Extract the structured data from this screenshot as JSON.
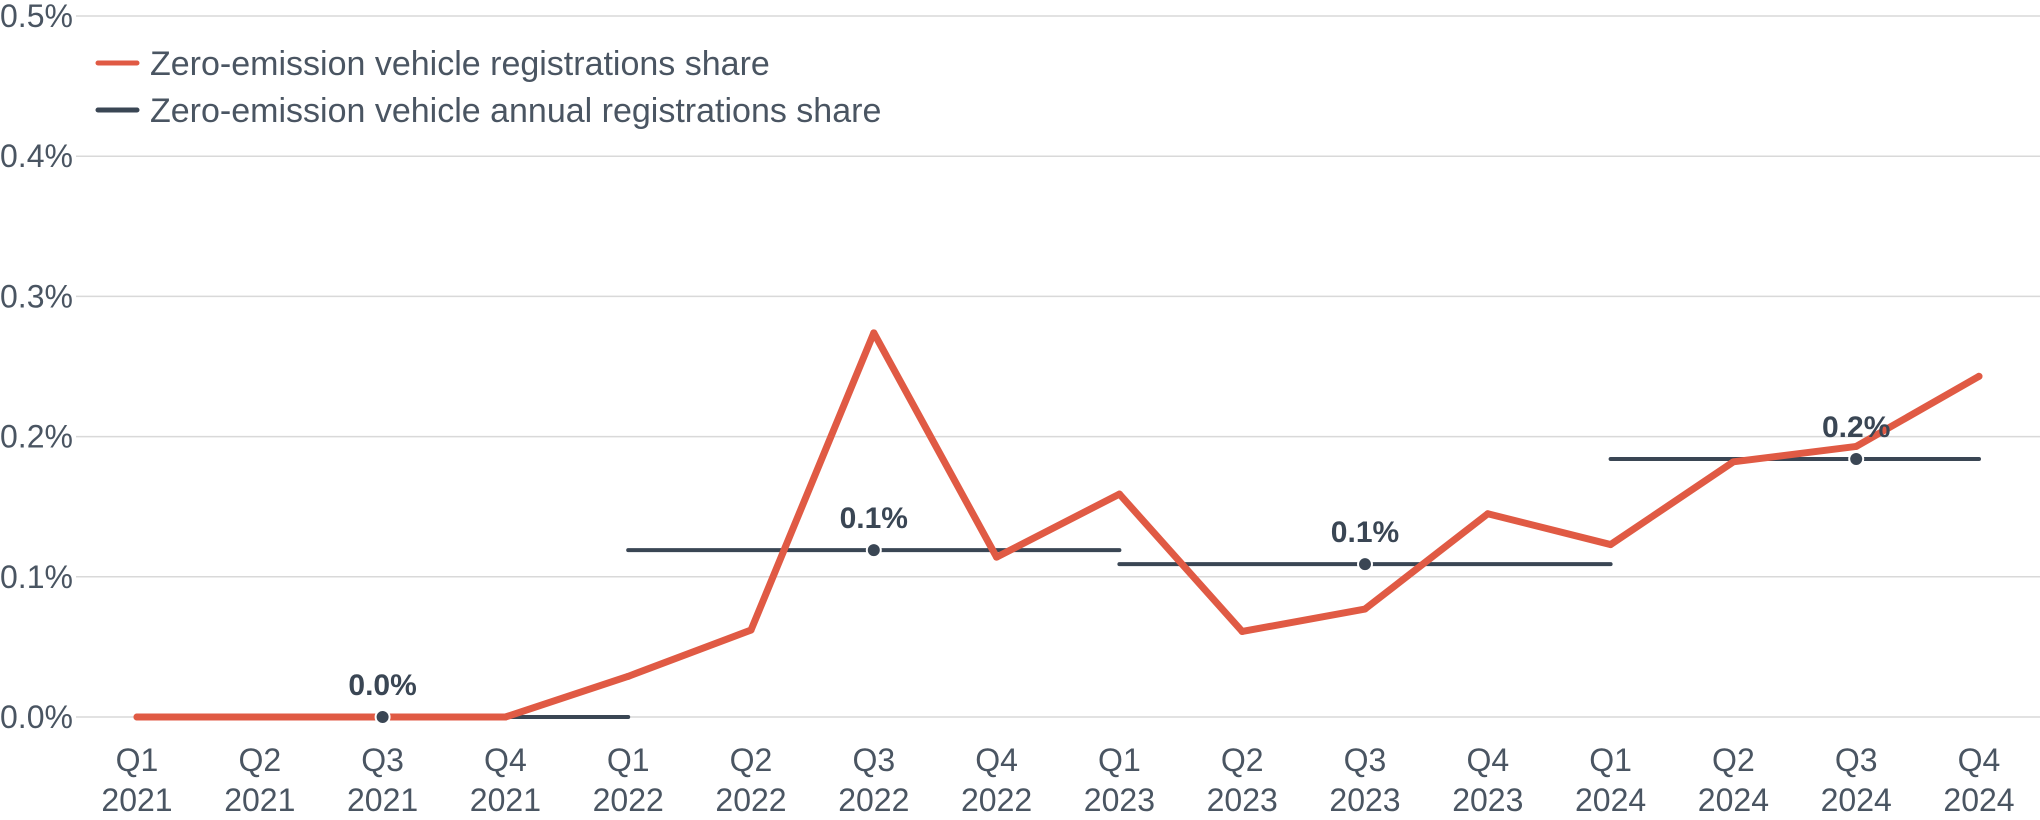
{
  "chart_data": {
    "type": "line",
    "title": "",
    "xlabel": "",
    "ylabel": "",
    "ylim": [
      0,
      0.5
    ],
    "y_tick_labels": [
      "0.0%",
      "0.1%",
      "0.2%",
      "0.3%",
      "0.4%",
      "0.5%"
    ],
    "y_tick_values": [
      0,
      0.1,
      0.2,
      0.3,
      0.4,
      0.5
    ],
    "grid": true,
    "legend_position": "top-left",
    "categories": [
      {
        "quarter": "Q1",
        "year": "2021"
      },
      {
        "quarter": "Q2",
        "year": "2021"
      },
      {
        "quarter": "Q3",
        "year": "2021"
      },
      {
        "quarter": "Q4",
        "year": "2021"
      },
      {
        "quarter": "Q1",
        "year": "2022"
      },
      {
        "quarter": "Q2",
        "year": "2022"
      },
      {
        "quarter": "Q3",
        "year": "2022"
      },
      {
        "quarter": "Q4",
        "year": "2022"
      },
      {
        "quarter": "Q1",
        "year": "2023"
      },
      {
        "quarter": "Q2",
        "year": "2023"
      },
      {
        "quarter": "Q3",
        "year": "2023"
      },
      {
        "quarter": "Q4",
        "year": "2023"
      },
      {
        "quarter": "Q1",
        "year": "2024"
      },
      {
        "quarter": "Q2",
        "year": "2024"
      },
      {
        "quarter": "Q3",
        "year": "2024"
      },
      {
        "quarter": "Q4",
        "year": "2024"
      }
    ],
    "series": [
      {
        "name": "Zero-emission vehicle registrations share",
        "color": "#e05a44",
        "values": [
          0.0,
          0.0,
          0.0,
          0.0,
          0.029,
          0.062,
          0.274,
          0.114,
          0.159,
          0.061,
          0.077,
          0.145,
          0.123,
          0.182,
          0.193,
          0.243
        ]
      }
    ],
    "annual_series": {
      "name": "Zero-emission vehicle annual registrations share",
      "color": "#3a4654",
      "segments": [
        {
          "year": "2021",
          "start_index": 0,
          "end_index": 4,
          "marker_index": 2,
          "value": 0.0,
          "label": "0.0%"
        },
        {
          "year": "2022",
          "start_index": 4,
          "end_index": 8,
          "marker_index": 6,
          "value": 0.119,
          "label": "0.1%"
        },
        {
          "year": "2023",
          "start_index": 8,
          "end_index": 12,
          "marker_index": 10,
          "value": 0.109,
          "label": "0.1%"
        },
        {
          "year": "2024",
          "start_index": 12,
          "end_index": 15,
          "marker_index": 14,
          "value": 0.184,
          "label": "0.2%"
        }
      ]
    },
    "colors": {
      "grid": "#d9d9d9",
      "text": "#4a5562",
      "quarterly_line": "#e05a44",
      "annual_line": "#3a4654"
    }
  }
}
